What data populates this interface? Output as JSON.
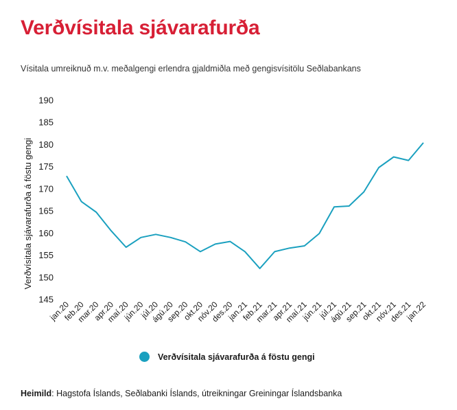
{
  "title": "Verðvísitala sjávarafurða",
  "subtitle": "Vísitala umreiknuð m.v. meðalgengi erlendra gjaldmiðla með gengisvísitölu Seðlabankans",
  "source": {
    "label": "Heimild",
    "text": ": Hagstofa Íslands, Seðlabanki Íslands, útreikningar Greiningar Íslandsbanka"
  },
  "legend_label": "Verðvísitala sjávarafurða á föstu gengi",
  "colors": {
    "title": "#d71f35",
    "series": "#1aa0bf"
  },
  "chart_data": {
    "type": "line",
    "ylabel": "Verðvísitala sjávarafurða á föstu gengi",
    "xlabel": "",
    "ylim": [
      145,
      190
    ],
    "yticks": [
      145,
      150,
      155,
      160,
      165,
      170,
      175,
      180,
      185,
      190
    ],
    "grid": false,
    "legend": "bottom",
    "categories": [
      "jan.20",
      "feb.20",
      "mar.20",
      "apr.20",
      "maí.20",
      "jún.20",
      "júl.20",
      "ágú.20",
      "sep.20",
      "okt.20",
      "nóv.20",
      "des.20",
      "jan.21",
      "feb.21",
      "mar.21",
      "apr.21",
      "maí.21",
      "jún.21",
      "júl.21",
      "ágú.21",
      "sep.21",
      "okt.21",
      "nóv.21",
      "des.21",
      "jan.22"
    ],
    "series": [
      {
        "name": "Verðvísitala sjávarafurða á föstu gengi",
        "values": [
          172.9,
          167.1,
          164.7,
          160.5,
          156.8,
          159.0,
          159.7,
          159.0,
          158.0,
          155.8,
          157.5,
          158.1,
          155.8,
          152.0,
          155.8,
          156.6,
          157.1,
          159.9,
          165.9,
          166.1,
          169.3,
          174.8,
          177.2,
          176.4,
          180.4
        ]
      }
    ]
  }
}
